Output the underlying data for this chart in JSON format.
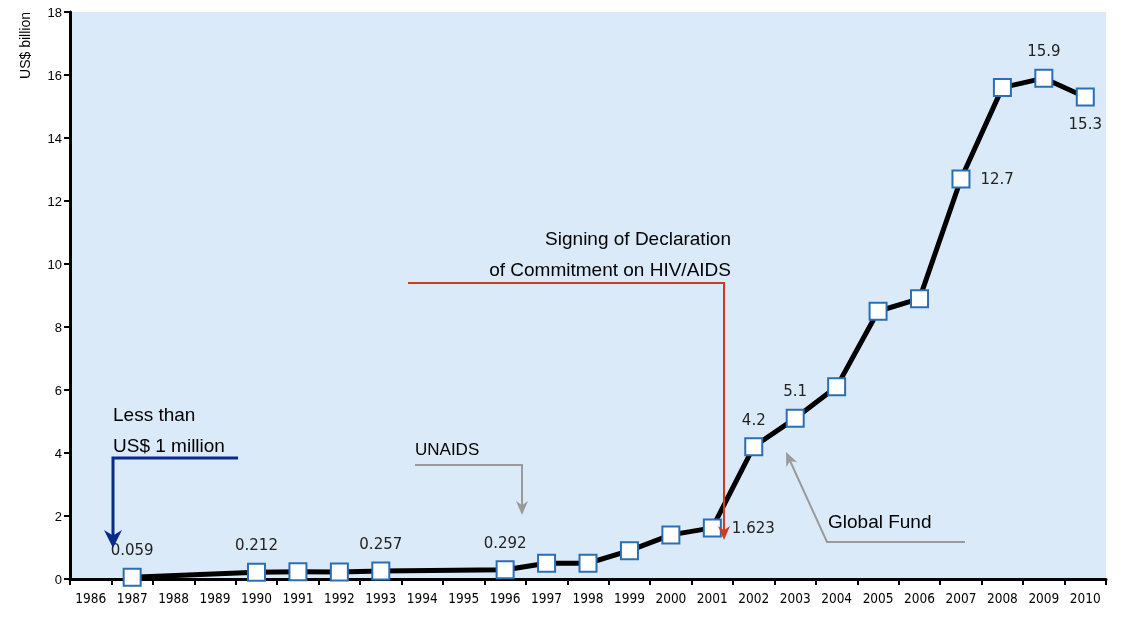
{
  "chart_data": {
    "type": "line",
    "ylabel": "US$ billion",
    "categories": [
      "1986",
      "1987",
      "1988",
      "1989",
      "1990",
      "1991",
      "1992",
      "1993",
      "1994",
      "1995",
      "1996",
      "1997",
      "1998",
      "1999",
      "2000",
      "2001",
      "2002",
      "2003",
      "2004",
      "2005",
      "2006",
      "2007",
      "2008",
      "2009",
      "2010"
    ],
    "series": [
      {
        "color": "#000000",
        "values": [
          null,
          0.059,
          null,
          null,
          0.212,
          0.23,
          0.22,
          0.257,
          null,
          null,
          0.292,
          0.5,
          0.5,
          0.9,
          1.4,
          1.623,
          4.2,
          5.1,
          6.1,
          8.5,
          8.9,
          12.7,
          15.6,
          15.9,
          15.3
        ],
        "value_labels": [
          null,
          "0.059",
          null,
          null,
          "0.212",
          null,
          null,
          "0.257",
          null,
          null,
          "0.292",
          null,
          null,
          null,
          null,
          "1.623",
          "4.2",
          "5.1",
          null,
          null,
          null,
          "12.7",
          null,
          "15.9",
          "15.3"
        ]
      }
    ],
    "ylim": [
      0,
      18
    ],
    "yticks": [
      0,
      2,
      4,
      6,
      8,
      10,
      12,
      14,
      16,
      18
    ],
    "marker": "square",
    "grid": false,
    "annotations": [
      "Less than\nUS$ 1 million",
      "UNAIDS",
      "Signing of Declaration\nof Commitment on HIV/AIDS",
      "Global Fund"
    ]
  }
}
